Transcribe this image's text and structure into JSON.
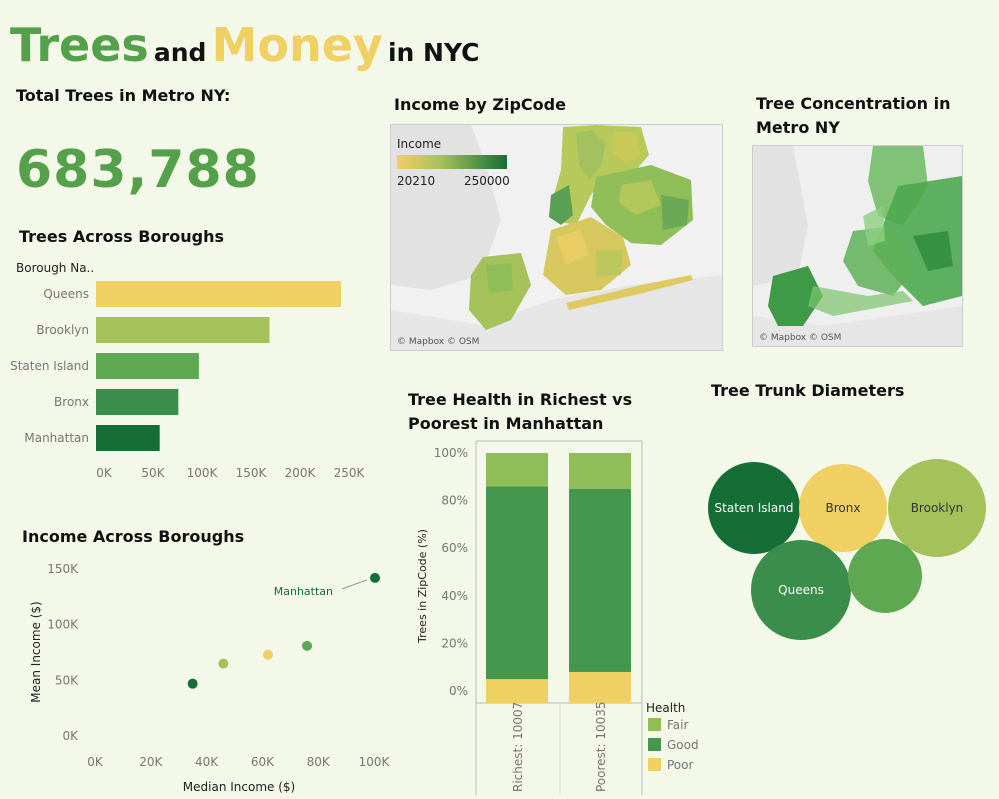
{
  "title": {
    "trees": "Trees",
    "and": "and",
    "money": "Money",
    "in": "in NYC"
  },
  "total": {
    "label": "Total Trees in Metro NY:",
    "value": "683,788"
  },
  "sections": {
    "boroughs": "Trees Across Boroughs",
    "income_map": "Income by ZipCode",
    "concentration": "Tree Concentration in Metro NY",
    "income_boroughs": "Income Across Boroughs",
    "health": "Tree Health in Richest vs Poorest in Manhattan",
    "trunk": "Tree Trunk Diameters"
  },
  "income_legend": {
    "label": "Income",
    "min": "20210",
    "max": "250000"
  },
  "map_credit": "© Mapbox © OSM",
  "colors": {
    "yellow": "#f0cf63",
    "lightgreen": "#a5c15a",
    "green": "#5fa852",
    "midgreen": "#3a8d4a",
    "darkgreen": "#166e37",
    "good": "#44974d"
  },
  "chart_data": [
    {
      "type": "bar",
      "title": "Trees Across Boroughs",
      "ylabel": "Borough Na..",
      "categories": [
        "Queens",
        "Brooklyn",
        "Staten Island",
        "Bronx",
        "Manhattan"
      ],
      "values": [
        250000,
        177000,
        105000,
        84000,
        65000
      ],
      "xlim": [
        0,
        260000
      ],
      "ticks": [
        "0K",
        "50K",
        "100K",
        "150K",
        "200K",
        "250K"
      ],
      "colors": [
        "#f0cf63",
        "#a5c15a",
        "#5fa852",
        "#3a8d4a",
        "#166e37"
      ]
    },
    {
      "type": "scatter",
      "title": "Income Across Boroughs",
      "xlabel": "Median Income ($)",
      "ylabel": "Mean Income ($)",
      "xlim": [
        0,
        100000
      ],
      "ylim": [
        0,
        150000
      ],
      "xticks": [
        "0K",
        "20K",
        "40K",
        "60K",
        "80K",
        "100K"
      ],
      "yticks": [
        "0K",
        "50K",
        "100K",
        "150K"
      ],
      "points": [
        {
          "x": 35000,
          "y": 47000,
          "color": "#166e37"
        },
        {
          "x": 46000,
          "y": 65000,
          "color": "#a5c15a"
        },
        {
          "x": 62000,
          "y": 73000,
          "color": "#f0cf63"
        },
        {
          "x": 76000,
          "y": 81000,
          "color": "#5fa852"
        },
        {
          "x": 101000,
          "y": 142000,
          "color": "#166e37",
          "label": "Manhattan"
        }
      ]
    },
    {
      "type": "bar",
      "stacked": true,
      "title": "Tree Health in Richest vs Poorest in Manhattan",
      "ylabel": "Trees in ZipCode (%)",
      "categories": [
        "Richest: 10007",
        "Poorest: 10035"
      ],
      "series": [
        {
          "name": "Poor",
          "values": [
            5,
            8
          ],
          "color": "#f0cf63"
        },
        {
          "name": "Good",
          "values": [
            81,
            77
          ],
          "color": "#44974d"
        },
        {
          "name": "Fair",
          "values": [
            14,
            15
          ],
          "color": "#8fbd57"
        }
      ],
      "yticks": [
        "0%",
        "20%",
        "40%",
        "60%",
        "80%",
        "100%"
      ],
      "legend_title": "Health",
      "legend_order": [
        "Fair",
        "Good",
        "Poor"
      ]
    },
    {
      "type": "bubble",
      "title": "Tree Trunk Diameters",
      "bubbles": [
        {
          "label": "Staten Island",
          "color": "#166e37"
        },
        {
          "label": "Bronx",
          "color": "#f0cf63"
        },
        {
          "label": "Brooklyn",
          "color": "#a5c15a"
        },
        {
          "label": "Queens",
          "color": "#3a8d4a"
        },
        {
          "label": "",
          "color": "#5fa852"
        }
      ]
    }
  ]
}
